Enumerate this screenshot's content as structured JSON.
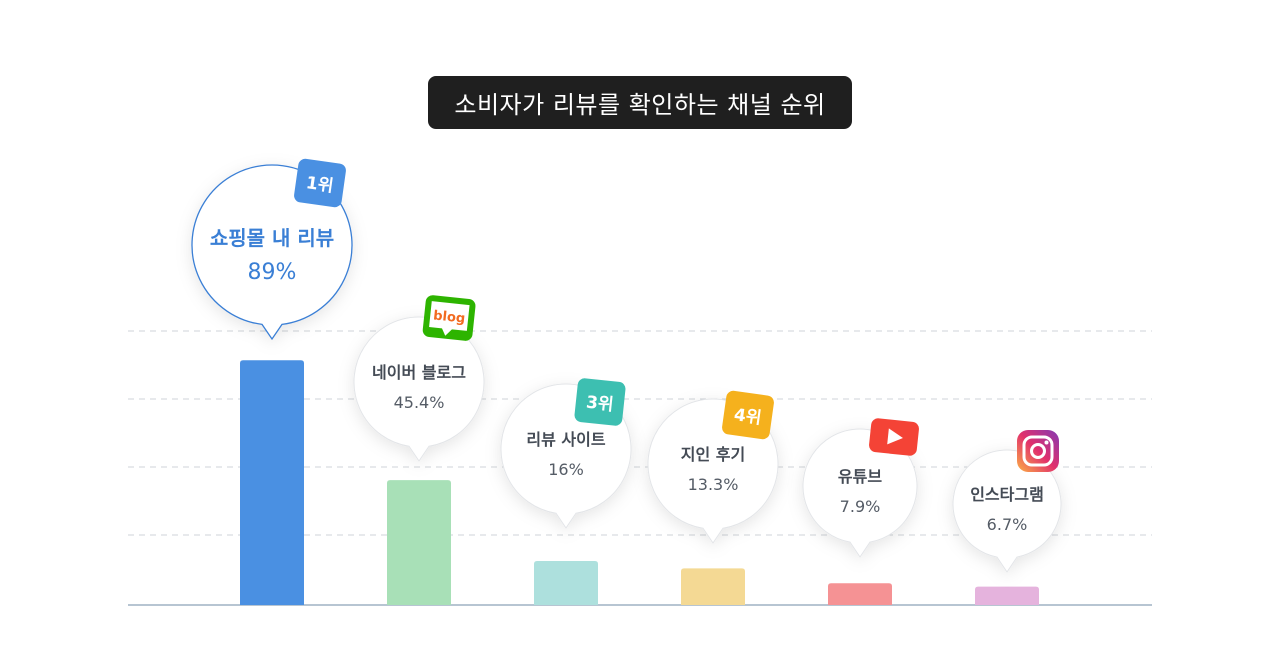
{
  "header": {
    "title": "소비자가 리뷰를 확인하는 채널 순위"
  },
  "chart_data": {
    "type": "bar",
    "title": "소비자가 리뷰를 확인하는 채널 순위",
    "unit": "%",
    "categories": [
      "쇼핑몰 내 리뷰",
      "네이버 블로그",
      "리뷰 사이트",
      "지인 후기",
      "유튜브",
      "인스타그램"
    ],
    "values": [
      89,
      45.4,
      16,
      13.3,
      7.9,
      6.7
    ],
    "value_labels": [
      "89%",
      "45.4%",
      "16%",
      "13.3%",
      "7.9%",
      "6.7%"
    ],
    "ranks": [
      "1위",
      "",
      "3위",
      "4위",
      "",
      ""
    ],
    "badge_icons": [
      "rank-badge",
      "naver-blog-icon",
      "rank-badge",
      "rank-badge",
      "youtube-icon",
      "instagram-icon"
    ],
    "blog_icon_text": "blog",
    "colors": [
      "#4a90e2",
      "#a8e0b7",
      "#ade0dd",
      "#f4d994",
      "#f59294",
      "#e5b3dd"
    ],
    "badge_colors": [
      "#4a90e2",
      "#2db400",
      "#3dbfb1",
      "#f5b11d",
      "#f44336",
      "#d6287c"
    ],
    "highlight_color": "#3a7fd5",
    "grid": true
  }
}
